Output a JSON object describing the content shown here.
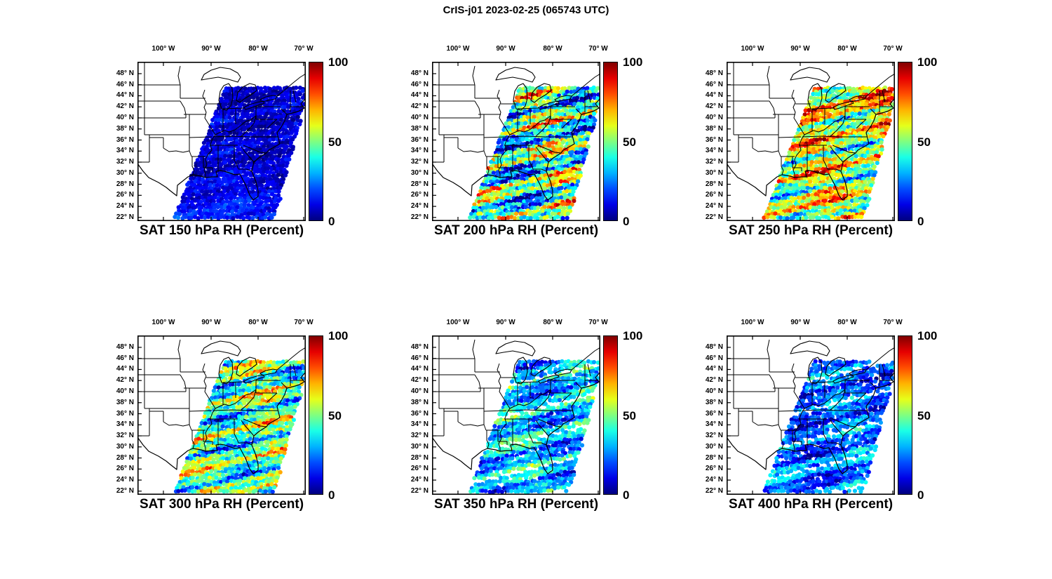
{
  "figure": {
    "title": "CrIS-j01 2023-02-25 (065743 UTC)",
    "instrument": "CrIS-j01",
    "date": "2023-02-25",
    "time_utc": "065743"
  },
  "axes": {
    "lon_labels": [
      "100° W",
      "90° W",
      "80° W",
      "70° W"
    ],
    "lat_labels": [
      "48° N",
      "46° N",
      "44° N",
      "42° N",
      "40° N",
      "38° N",
      "36° N",
      "34° N",
      "32° N",
      "30° N",
      "28° N",
      "26° N",
      "24° N",
      "22° N"
    ],
    "colorbar_labels": [
      "100",
      "50",
      "0"
    ]
  },
  "chart_data": [
    {
      "type": "heatmap",
      "title": "SAT 150 hPa RH (Percent)",
      "level_hPa": 150,
      "variable": "Relative Humidity",
      "units": "Percent",
      "colorbar": {
        "min": 0,
        "max": 100,
        "ticks": [
          0,
          50,
          100
        ],
        "colormap": "jet"
      },
      "lon_ticks_deg_w": [
        100,
        90,
        80,
        70
      ],
      "lat_ticks_deg_n": [
        48,
        46,
        44,
        42,
        40,
        38,
        36,
        34,
        32,
        30,
        28,
        26,
        24,
        22
      ],
      "swath_summary": "Very low RH (0-20%) across the entire diagonal satellite swath; almost uniformly dark blue with slightly lighter blue near the southern edge",
      "field": {
        "base": 8,
        "amp": 6,
        "noise": 5,
        "south_boost": 8,
        "north_boost": 0,
        "gap": 0,
        "seed": 11
      }
    },
    {
      "type": "heatmap",
      "title": "SAT 200 hPa RH (Percent)",
      "level_hPa": 200,
      "variable": "Relative Humidity",
      "units": "Percent",
      "colorbar": {
        "min": 0,
        "max": 100,
        "ticks": [
          0,
          50,
          100
        ],
        "colormap": "jet"
      },
      "lon_ticks_deg_w": [
        100,
        90,
        80,
        70
      ],
      "lat_ticks_deg_n": [
        48,
        46,
        44,
        42,
        40,
        38,
        36,
        34,
        32,
        30,
        28,
        26,
        24,
        22
      ],
      "swath_summary": "Strong diagonal streaks of saturated air (dark red, 80-100%) over the Gulf Coast, Midwest and Ohio Valley interleaved with dry blue bands offshore",
      "field": {
        "base": 42,
        "amp": 40,
        "noise": 12,
        "south_boost": 0,
        "north_boost": 0,
        "gap": 0,
        "seed": 22
      }
    },
    {
      "type": "heatmap",
      "title": "SAT 250 hPa RH (Percent)",
      "level_hPa": 250,
      "variable": "Relative Humidity",
      "units": "Percent",
      "colorbar": {
        "min": 0,
        "max": 100,
        "ticks": [
          0,
          50,
          100
        ],
        "colormap": "jet"
      },
      "lon_ticks_deg_w": [
        100,
        90,
        80,
        70
      ],
      "lat_ticks_deg_n": [
        48,
        46,
        44,
        42,
        40,
        38,
        36,
        34,
        32,
        30,
        28,
        26,
        24,
        22
      ],
      "swath_summary": "Widespread high RH (60-100%, yellow-orange-red) over the northern and central swath; drier cyan/blue air over the southeastern Atlantic portion",
      "field": {
        "base": 56,
        "amp": 32,
        "noise": 10,
        "south_boost": 0,
        "north_boost": 14,
        "gap": 0,
        "seed": 33
      }
    },
    {
      "type": "heatmap",
      "title": "SAT 300 hPa RH (Percent)",
      "level_hPa": 300,
      "variable": "Relative Humidity",
      "units": "Percent",
      "colorbar": {
        "min": 0,
        "max": 100,
        "ticks": [
          0,
          50,
          100
        ],
        "colormap": "jet"
      },
      "lon_ticks_deg_w": [
        100,
        90,
        80,
        70
      ],
      "lat_ticks_deg_n": [
        48,
        46,
        44,
        42,
        40,
        38,
        36,
        34,
        32,
        30,
        28,
        26,
        24,
        22
      ],
      "swath_summary": "Moderate RH with yellow-to-red streaks over the Southeast, Gulf Coast and Florida; cyan-blue elsewhere in the swath",
      "field": {
        "base": 45,
        "amp": 30,
        "noise": 10,
        "south_boost": 0,
        "north_boost": 0,
        "gap": 0,
        "seed": 44
      }
    },
    {
      "type": "heatmap",
      "title": "SAT 350 hPa RH (Percent)",
      "level_hPa": 350,
      "variable": "Relative Humidity",
      "units": "Percent",
      "colorbar": {
        "min": 0,
        "max": 100,
        "ticks": [
          0,
          50,
          100
        ],
        "colormap": "jet"
      },
      "lon_ticks_deg_w": [
        100,
        90,
        80,
        70
      ],
      "lat_ticks_deg_n": [
        48,
        46,
        44,
        42,
        40,
        38,
        36,
        34,
        32,
        30,
        28,
        26,
        24,
        22
      ],
      "swath_summary": "Mostly 10-50% (blue/cyan) with scattered yellow patches over the Midwest and Southeast; a few small white data gaps along the Gulf Coast",
      "field": {
        "base": 32,
        "amp": 20,
        "noise": 8,
        "south_boost": 0,
        "north_boost": 0,
        "gap": 0.04,
        "seed": 55
      }
    },
    {
      "type": "heatmap",
      "title": "SAT 400 hPa RH (Percent)",
      "level_hPa": 400,
      "variable": "Relative Humidity",
      "units": "Percent",
      "colorbar": {
        "min": 0,
        "max": 100,
        "ticks": [
          0,
          50,
          100
        ],
        "colormap": "jet"
      },
      "lon_ticks_deg_w": [
        100,
        90,
        80,
        70
      ],
      "lat_ticks_deg_n": [
        48,
        46,
        44,
        42,
        40,
        38,
        36,
        34,
        32,
        30,
        28,
        26,
        24,
        22
      ],
      "swath_summary": "Low RH (5-40%), blue dominated with cyan patches over the Northeast and Atlantic; small white data gaps near 30-34N",
      "field": {
        "base": 23,
        "amp": 17,
        "noise": 8,
        "south_boost": 0,
        "north_boost": 0,
        "gap": 0.05,
        "seed": 66
      }
    }
  ]
}
